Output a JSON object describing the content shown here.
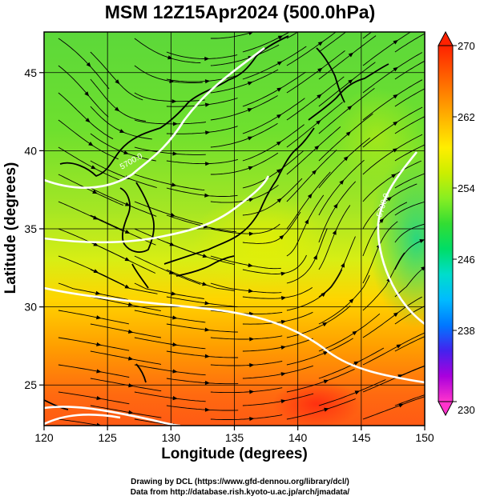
{
  "title": "MSM 12Z15Apr2024 (500.0hPa)",
  "axes": {
    "xlabel": "Longitude (degrees)",
    "ylabel": "Latitude  (degrees)",
    "x_range": [
      120,
      150
    ],
    "y_range": [
      22.4,
      47.6
    ],
    "x_ticks": [
      120,
      125,
      130,
      135,
      140,
      145,
      150
    ],
    "y_ticks": [
      25,
      30,
      35,
      40,
      45
    ]
  },
  "colorbar": {
    "range": [
      230,
      270
    ],
    "ticks": [
      270,
      262,
      254,
      246,
      238,
      230
    ],
    "colors": [
      "#ff33cc",
      "#aa00dd",
      "#4422ee",
      "#0077ff",
      "#00bbff",
      "#00ddcc",
      "#00dd66",
      "#33dd33",
      "#88ee22",
      "#ccee00",
      "#ffee00",
      "#ffbb00",
      "#ff8800",
      "#ff5500",
      "#ff2200"
    ]
  },
  "contours": [
    {
      "label": "5700.0",
      "color": "#ffffff"
    },
    {
      "label": "5700.0",
      "color": "#ffffff"
    }
  ],
  "credits": {
    "line1": "Drawing by DCL (https://www.gfd-dennou.org/library/dcl/)",
    "line2": "Data from http://database.rish.kyoto-u.ac.jp/arch/jmadata/"
  }
}
